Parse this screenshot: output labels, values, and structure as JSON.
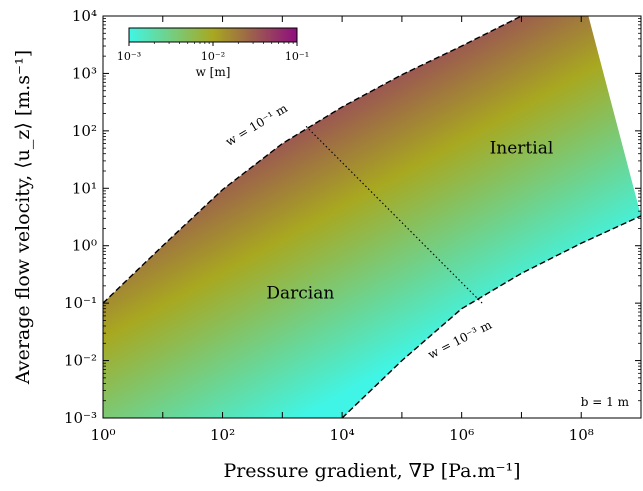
{
  "chart_data": {
    "type": "area",
    "xlabel": "Pressure gradient, ∇P [Pa.m⁻¹]",
    "ylabel": "Average flow velocity, ⟨u_z⟩ [m.s⁻¹]",
    "xscale": "log",
    "yscale": "log",
    "xlim": [
      1,
      1000000000.0
    ],
    "ylim": [
      0.001,
      10000
    ],
    "xticks": [
      {
        "value": 1,
        "label": "10⁰"
      },
      {
        "value": 100,
        "label": "10²"
      },
      {
        "value": 10000,
        "label": "10⁴"
      },
      {
        "value": 1000000,
        "label": "10⁶"
      },
      {
        "value": 100000000,
        "label": "10⁸"
      }
    ],
    "yticks": [
      {
        "value": 0.001,
        "label": "10⁻³"
      },
      {
        "value": 0.01,
        "label": "10⁻²"
      },
      {
        "value": 0.1,
        "label": "10⁻¹"
      },
      {
        "value": 1,
        "label": "10⁰"
      },
      {
        "value": 10,
        "label": "10¹"
      },
      {
        "value": 100,
        "label": "10²"
      },
      {
        "value": 1000,
        "label": "10³"
      },
      {
        "value": 10000,
        "label": "10⁴"
      }
    ],
    "series": [
      {
        "name": "w = 10⁻¹ m",
        "style": "dashed",
        "x": [
          1,
          10,
          100,
          1000,
          10000,
          100000,
          1000000,
          10000000,
          100000000
        ],
        "y": [
          0.1,
          1,
          9.5,
          60,
          260,
          950,
          3000,
          10000,
          30000
        ]
      },
      {
        "name": "w = 10⁻³ m",
        "style": "dashed",
        "x": [
          10000,
          100000,
          1000000,
          10000000,
          100000000,
          1000000000
        ],
        "y": [
          0.001,
          0.01,
          0.08,
          0.33,
          1.1,
          3.3
        ]
      },
      {
        "name": "transition",
        "style": "dotted",
        "x": [
          2500,
          2200000
        ],
        "y": [
          120,
          0.1
        ]
      }
    ],
    "colorbar": {
      "label": "w [m]",
      "scale": "log",
      "range": [
        0.001,
        0.1
      ],
      "ticks": [
        {
          "value": 0.001,
          "label": "10⁻³"
        },
        {
          "value": 0.01,
          "label": "10⁻²"
        },
        {
          "value": 0.1,
          "label": "10⁻¹"
        }
      ],
      "colors": [
        "#40f5e5",
        "#a8a820",
        "#8f0d7f"
      ],
      "position": "top-left"
    },
    "annotations": [
      {
        "text": "Inertial",
        "x": 10000000,
        "y": 40
      },
      {
        "text": "Darcian",
        "x": 2000,
        "y": 0.12
      },
      {
        "text": "b = 1 m",
        "position": "bottom-right"
      }
    ],
    "line_labels": [
      {
        "text": "w = 10⁻¹ m",
        "x": 400,
        "y": 110,
        "angle": -31
      },
      {
        "text": "w = 10⁻³ m",
        "x": 1000000,
        "y": 0.02,
        "angle": -27
      }
    ],
    "grid": false
  }
}
